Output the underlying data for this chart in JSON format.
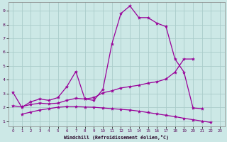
{
  "xlabel": "Windchill (Refroidissement éolien,°C)",
  "background_color": "#cce8e6",
  "grid_color": "#aaccca",
  "line_color": "#990099",
  "xlim": [
    -0.5,
    23.5
  ],
  "ylim": [
    0.6,
    9.6
  ],
  "xticks": [
    0,
    1,
    2,
    3,
    4,
    5,
    6,
    7,
    8,
    9,
    10,
    11,
    12,
    13,
    14,
    15,
    16,
    17,
    18,
    19,
    20,
    21,
    22,
    23
  ],
  "yticks": [
    1,
    2,
    3,
    4,
    5,
    6,
    7,
    8,
    9
  ],
  "series": [
    {
      "x": [
        0,
        1,
        2,
        3,
        4,
        5,
        6,
        7,
        8,
        9,
        10,
        11,
        12,
        13,
        14,
        15,
        16,
        17,
        18,
        19,
        20,
        21
      ],
      "y": [
        3.1,
        2.0,
        2.4,
        2.6,
        2.5,
        2.7,
        3.5,
        4.6,
        2.6,
        2.5,
        3.3,
        6.6,
        8.8,
        9.35,
        8.5,
        8.5,
        8.1,
        7.85,
        5.5,
        4.55,
        1.95,
        1.9
      ]
    },
    {
      "x": [
        0,
        1,
        2,
        3,
        4,
        5,
        6,
        7,
        8,
        9,
        10,
        11,
        12,
        13,
        14,
        15,
        16,
        17,
        18,
        19,
        20
      ],
      "y": [
        2.1,
        2.05,
        2.2,
        2.3,
        2.25,
        2.3,
        2.5,
        2.65,
        2.6,
        2.7,
        3.05,
        3.2,
        3.4,
        3.5,
        3.6,
        3.75,
        3.85,
        4.05,
        4.55,
        5.5,
        5.5
      ]
    },
    {
      "x": [
        1,
        2,
        3,
        4,
        5,
        6,
        7,
        8,
        9,
        10,
        11,
        12,
        13,
        14,
        15,
        16,
        17,
        18,
        19,
        20,
        21,
        22
      ],
      "y": [
        1.5,
        1.65,
        1.8,
        1.9,
        2.0,
        2.05,
        2.05,
        2.02,
        2.0,
        1.95,
        1.9,
        1.85,
        1.8,
        1.72,
        1.62,
        1.52,
        1.42,
        1.32,
        1.2,
        1.1,
        1.0,
        0.9
      ]
    }
  ]
}
